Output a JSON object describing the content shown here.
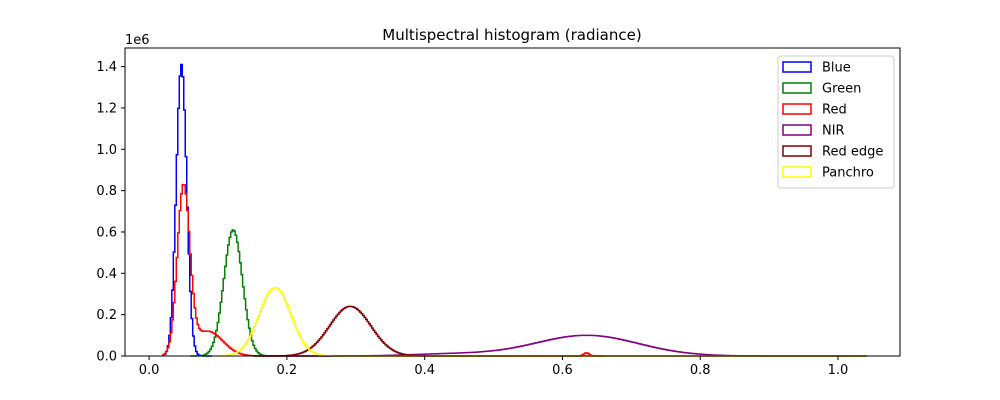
{
  "chart_data": {
    "type": "histogram",
    "title": "Multispectral histogram (radiance)",
    "xlabel": "",
    "ylabel": "",
    "y_scale_label": "1e6",
    "xlim": [
      -0.035,
      1.09
    ],
    "ylim": [
      0,
      1.49
    ],
    "x_ticks": [
      0.0,
      0.2,
      0.4,
      0.6,
      0.8,
      1.0
    ],
    "x_tick_labels": [
      "0.0",
      "0.2",
      "0.4",
      "0.6",
      "0.8",
      "1.0"
    ],
    "y_ticks": [
      0.0,
      0.2,
      0.4,
      0.6,
      0.8,
      1.0,
      1.2,
      1.4
    ],
    "y_tick_labels": [
      "0.0",
      "0.2",
      "0.4",
      "0.6",
      "0.8",
      "1.0",
      "1.2",
      "1.4"
    ],
    "grid": false,
    "legend_position": "top-right",
    "histtype": "step",
    "series": [
      {
        "name": "Blue",
        "color": "#0000ff",
        "peaks": [
          {
            "center": 0.047,
            "height": 1.41,
            "width": 0.0075
          }
        ],
        "range": [
          0.02,
          0.09
        ]
      },
      {
        "name": "Green",
        "color": "#008000",
        "peaks": [
          {
            "center": 0.122,
            "height": 0.61,
            "width": 0.0135
          }
        ],
        "range": [
          0.06,
          0.2
        ]
      },
      {
        "name": "Red",
        "color": "#ff0000",
        "peaks": [
          {
            "center": 0.05,
            "height": 0.8,
            "width": 0.009
          },
          {
            "center": 0.085,
            "height": 0.12,
            "width": 0.022
          },
          {
            "center": 0.635,
            "height": 0.015,
            "width": 0.004
          }
        ],
        "range": [
          0.02,
          0.66
        ]
      },
      {
        "name": "NIR",
        "color": "#800080",
        "peaks": [
          {
            "center": 0.635,
            "height": 0.1,
            "width": 0.075
          },
          {
            "center": 0.44,
            "height": 0.01,
            "width": 0.06
          }
        ],
        "range": [
          0.2,
          1.04
        ]
      },
      {
        "name": "Red edge",
        "color": "#800000",
        "peaks": [
          {
            "center": 0.292,
            "height": 0.24,
            "width": 0.03
          }
        ],
        "range": [
          0.15,
          1.04
        ]
      },
      {
        "name": "Panchro",
        "color": "#ffff00",
        "peaks": [
          {
            "center": 0.183,
            "height": 0.33,
            "width": 0.023
          }
        ],
        "range": [
          0.1,
          1.04
        ]
      }
    ]
  }
}
